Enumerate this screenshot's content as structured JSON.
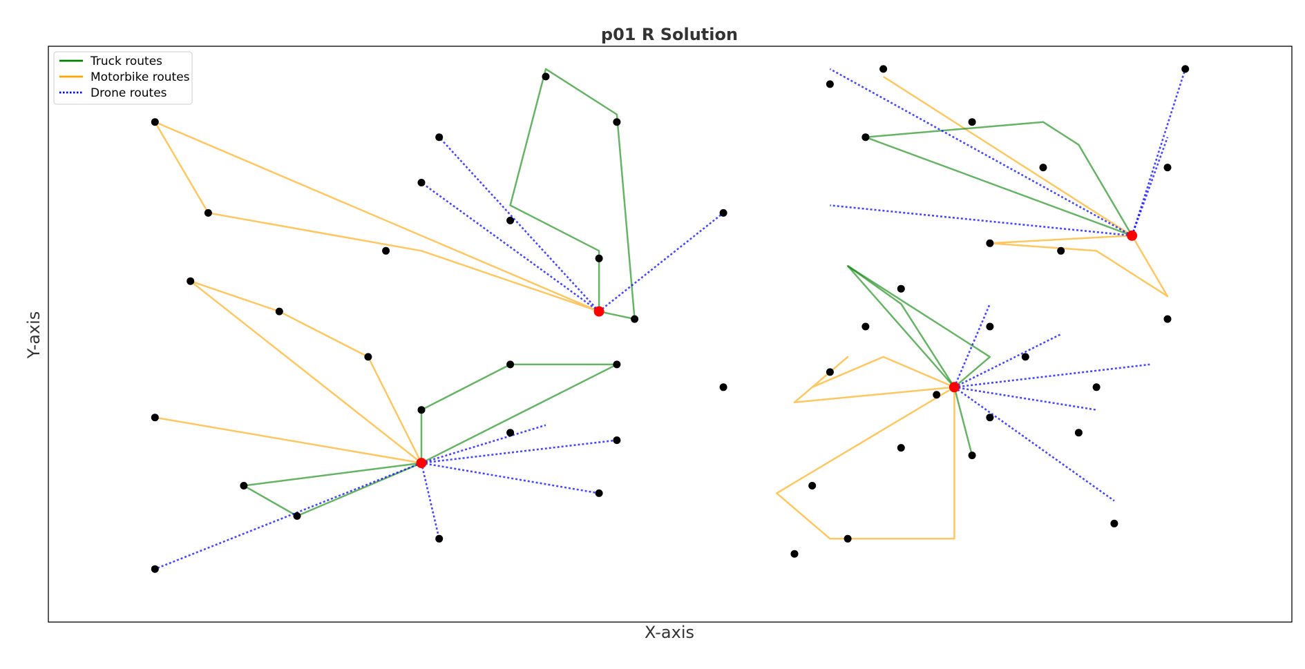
{
  "chart_data": {
    "type": "network",
    "title": "p01 R Solution",
    "xlabel": "X-axis",
    "ylabel": "Y-axis",
    "xlim": [
      -12,
      128
    ],
    "ylim": [
      -1,
      75
    ],
    "grid": false,
    "legend": {
      "placement": "top-left",
      "entries": [
        {
          "label": "Truck routes",
          "style": "solid",
          "color": "#008000"
        },
        {
          "label": "Motorbike routes",
          "style": "solid",
          "color": "#FFA500"
        },
        {
          "label": "Drone routes",
          "style": "dotted",
          "color": "#0000FF"
        }
      ]
    },
    "colors": {
      "truck": "#008000",
      "motorbike": "#FFA500",
      "drone": "#0000FF",
      "depot": "#FF0000",
      "customer": "#000000"
    },
    "depots": [
      [
        50,
        40
      ],
      [
        30,
        20
      ],
      [
        110,
        50
      ],
      [
        90,
        30
      ]
    ],
    "customers": [
      [
        0,
        65
      ],
      [
        6,
        53
      ],
      [
        32,
        63
      ],
      [
        30,
        57
      ],
      [
        26,
        48
      ],
      [
        44,
        71
      ],
      [
        52,
        65
      ],
      [
        40,
        52
      ],
      [
        50,
        47
      ],
      [
        54,
        39
      ],
      [
        64,
        53
      ],
      [
        82,
        72
      ],
      [
        76,
        70
      ],
      [
        92,
        65
      ],
      [
        100,
        59
      ],
      [
        80,
        63
      ],
      [
        94,
        49
      ],
      [
        102,
        48
      ],
      [
        114,
        59
      ],
      [
        116,
        72
      ],
      [
        114,
        39
      ],
      [
        84,
        43
      ],
      [
        80,
        38
      ],
      [
        94,
        38
      ],
      [
        98,
        34
      ],
      [
        76,
        32
      ],
      [
        88,
        29
      ],
      [
        94,
        26
      ],
      [
        106,
        30
      ],
      [
        104,
        24
      ],
      [
        92,
        21
      ],
      [
        108,
        12
      ],
      [
        84,
        22
      ],
      [
        74,
        17
      ],
      [
        72,
        8
      ],
      [
        64,
        30
      ],
      [
        78,
        10
      ],
      [
        4,
        44
      ],
      [
        14,
        40
      ],
      [
        24,
        34
      ],
      [
        0,
        26
      ],
      [
        10,
        17
      ],
      [
        16,
        13
      ],
      [
        0,
        6
      ],
      [
        30,
        27
      ],
      [
        40,
        33
      ],
      [
        52,
        33
      ],
      [
        40,
        24
      ],
      [
        52,
        23
      ],
      [
        32,
        10
      ],
      [
        50,
        16
      ]
    ],
    "routes": [
      {
        "type": "motorbike",
        "path": [
          [
            50,
            40
          ],
          [
            30,
            48
          ],
          [
            6,
            53
          ],
          [
            0,
            65
          ],
          [
            50,
            40
          ]
        ]
      },
      {
        "type": "truck",
        "path": [
          [
            50,
            40
          ],
          [
            50,
            48
          ],
          [
            40,
            54
          ],
          [
            44,
            72
          ],
          [
            52,
            66
          ],
          [
            54,
            39
          ],
          [
            50,
            40
          ]
        ]
      },
      {
        "type": "drone",
        "path": [
          [
            50,
            40
          ],
          [
            32,
            63
          ]
        ]
      },
      {
        "type": "drone",
        "path": [
          [
            50,
            40
          ],
          [
            30,
            57
          ]
        ]
      },
      {
        "type": "drone",
        "path": [
          [
            50,
            40
          ],
          [
            64,
            53
          ]
        ]
      },
      {
        "type": "motorbike",
        "path": [
          [
            30,
            20
          ],
          [
            24,
            34
          ],
          [
            14,
            40
          ],
          [
            4,
            44
          ],
          [
            30,
            20
          ]
        ]
      },
      {
        "type": "motorbike",
        "path": [
          [
            30,
            20
          ],
          [
            0,
            26
          ]
        ]
      },
      {
        "type": "truck",
        "path": [
          [
            30,
            20
          ],
          [
            10,
            17
          ],
          [
            16,
            13
          ],
          [
            30,
            20
          ]
        ]
      },
      {
        "type": "truck",
        "path": [
          [
            30,
            20
          ],
          [
            30,
            27
          ],
          [
            40,
            33
          ],
          [
            52,
            33
          ],
          [
            30,
            20
          ]
        ]
      },
      {
        "type": "drone",
        "path": [
          [
            30,
            20
          ],
          [
            0,
            6
          ]
        ]
      },
      {
        "type": "drone",
        "path": [
          [
            30,
            20
          ],
          [
            32,
            10
          ]
        ]
      },
      {
        "type": "drone",
        "path": [
          [
            30,
            20
          ],
          [
            50,
            16
          ]
        ]
      },
      {
        "type": "drone",
        "path": [
          [
            30,
            20
          ],
          [
            52,
            23
          ]
        ]
      },
      {
        "type": "drone",
        "path": [
          [
            30,
            20
          ],
          [
            44,
            25
          ]
        ]
      },
      {
        "type": "motorbike",
        "path": [
          [
            110,
            50
          ],
          [
            82,
            71
          ]
        ]
      },
      {
        "type": "truck",
        "path": [
          [
            110,
            50
          ],
          [
            80,
            63
          ],
          [
            100,
            65
          ],
          [
            104,
            62
          ],
          [
            110,
            50
          ]
        ]
      },
      {
        "type": "motorbike",
        "path": [
          [
            110,
            50
          ],
          [
            94,
            49
          ],
          [
            106,
            48
          ],
          [
            114,
            42
          ],
          [
            110,
            50
          ]
        ]
      },
      {
        "type": "drone",
        "path": [
          [
            110,
            50
          ],
          [
            76,
            72
          ]
        ]
      },
      {
        "type": "drone",
        "path": [
          [
            110,
            50
          ],
          [
            116,
            72
          ]
        ]
      },
      {
        "type": "drone",
        "path": [
          [
            110,
            50
          ],
          [
            114,
            63
          ]
        ]
      },
      {
        "type": "drone",
        "path": [
          [
            110,
            50
          ],
          [
            76,
            54
          ]
        ]
      },
      {
        "type": "truck",
        "path": [
          [
            90,
            30
          ],
          [
            78,
            46
          ],
          [
            94,
            34
          ],
          [
            90,
            30
          ]
        ]
      },
      {
        "type": "truck",
        "path": [
          [
            90,
            30
          ],
          [
            84,
            41
          ],
          [
            78,
            46
          ]
        ]
      },
      {
        "type": "truck",
        "path": [
          [
            90,
            30
          ],
          [
            92,
            21
          ]
        ]
      },
      {
        "type": "motorbike",
        "path": [
          [
            90,
            30
          ],
          [
            82,
            34
          ],
          [
            74,
            30
          ],
          [
            78,
            34
          ],
          [
            72,
            28
          ],
          [
            90,
            30
          ]
        ]
      },
      {
        "type": "motorbike",
        "path": [
          [
            90,
            30
          ],
          [
            70,
            16
          ],
          [
            76,
            10
          ],
          [
            90,
            10
          ],
          [
            90,
            30
          ]
        ]
      },
      {
        "type": "drone",
        "path": [
          [
            90,
            30
          ],
          [
            94,
            41
          ]
        ]
      },
      {
        "type": "drone",
        "path": [
          [
            90,
            30
          ],
          [
            102,
            37
          ]
        ]
      },
      {
        "type": "drone",
        "path": [
          [
            90,
            30
          ],
          [
            112,
            33
          ]
        ]
      },
      {
        "type": "drone",
        "path": [
          [
            90,
            30
          ],
          [
            106,
            27
          ]
        ]
      },
      {
        "type": "drone",
        "path": [
          [
            90,
            30
          ],
          [
            108,
            15
          ]
        ]
      }
    ]
  }
}
